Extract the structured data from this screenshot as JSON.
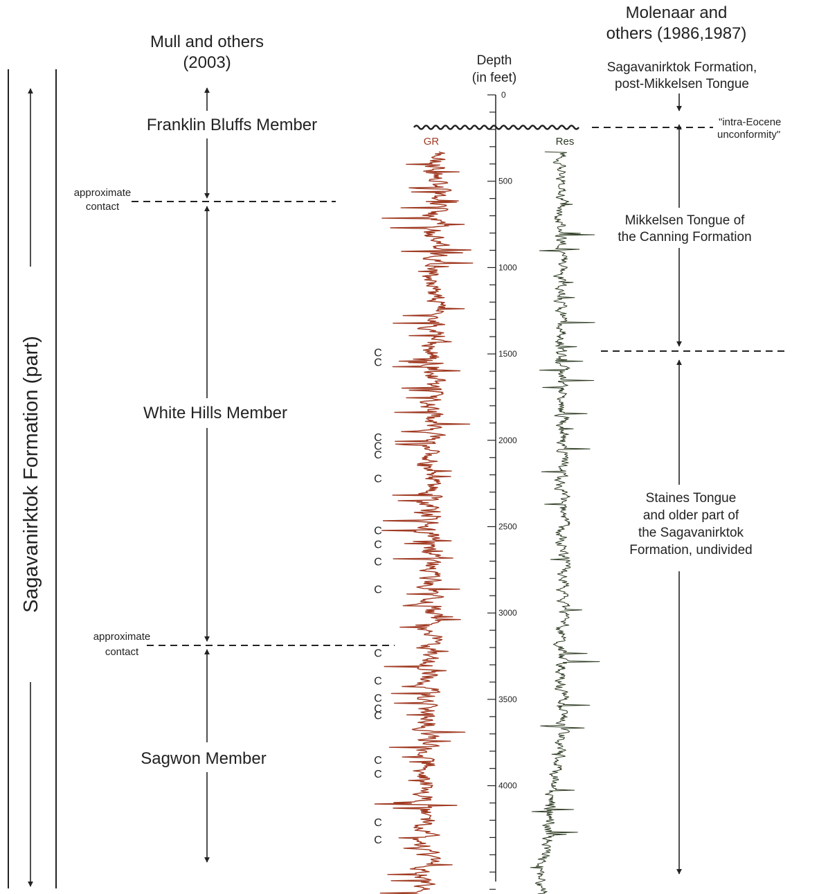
{
  "colors": {
    "gr": "#a03a22",
    "res": "#2d3b22",
    "ink": "#222222"
  },
  "left_column": {
    "formation": "Sagavanirktok Formation (part)",
    "source_line1": "Mull and others",
    "source_line2": "(2003)",
    "members": [
      {
        "name": "Franklin Bluffs Member",
        "top_ft": 200,
        "base_ft": 600
      },
      {
        "name": "White Hills Member",
        "top_ft": 600,
        "base_ft": 3200
      },
      {
        "name": "Sagwon Member",
        "top_ft": 3200,
        "base_ft": 4650
      }
    ],
    "contacts": [
      {
        "line1": "approximate",
        "line2": "contact",
        "depth_ft": 600
      },
      {
        "line1": "approximate",
        "line2": "contact",
        "depth_ft": 3200
      }
    ]
  },
  "right_column": {
    "source_line1": "Molenaar and",
    "source_line2": "others (1986,1987)",
    "top_unit_line1": "Sagavanirktok Formation,",
    "top_unit_line2": "post-Mikkelsen Tongue",
    "unconformity_line1": "\"intra-Eocene",
    "unconformity_line2": "unconformity\"",
    "units": [
      {
        "lines": [
          "Mikkelsen Tongue of",
          "the Canning Formation"
        ],
        "top_ft": 200,
        "base_ft": 1480
      },
      {
        "lines": [
          "Staines Tongue",
          "and older part of",
          "the Sagavanirktok",
          "Formation, undivided"
        ],
        "top_ft": 1480,
        "base_ft": 4650
      }
    ]
  },
  "log": {
    "depth_label_line1": "Depth",
    "depth_label_line2": "(in feet)",
    "depth_range_ft": [
      0,
      4750
    ],
    "major_ticks": [
      0,
      500,
      1000,
      1500,
      2000,
      2500,
      3000,
      3500,
      4000
    ],
    "minor_tick_interval_ft": 100,
    "unconformity_depth_ft": 200,
    "gr_label": "GR",
    "res_label": "Res",
    "log_top_ft": 330,
    "log_base_ft": 4740
  },
  "coal_marker": {
    "symbol": "C",
    "depths_ft": [
      1490,
      1545,
      1980,
      2030,
      2080,
      2220,
      2520,
      2600,
      2700,
      2860,
      3230,
      3390,
      3490,
      3550,
      3590,
      3850,
      3930,
      4210,
      4310
    ]
  }
}
